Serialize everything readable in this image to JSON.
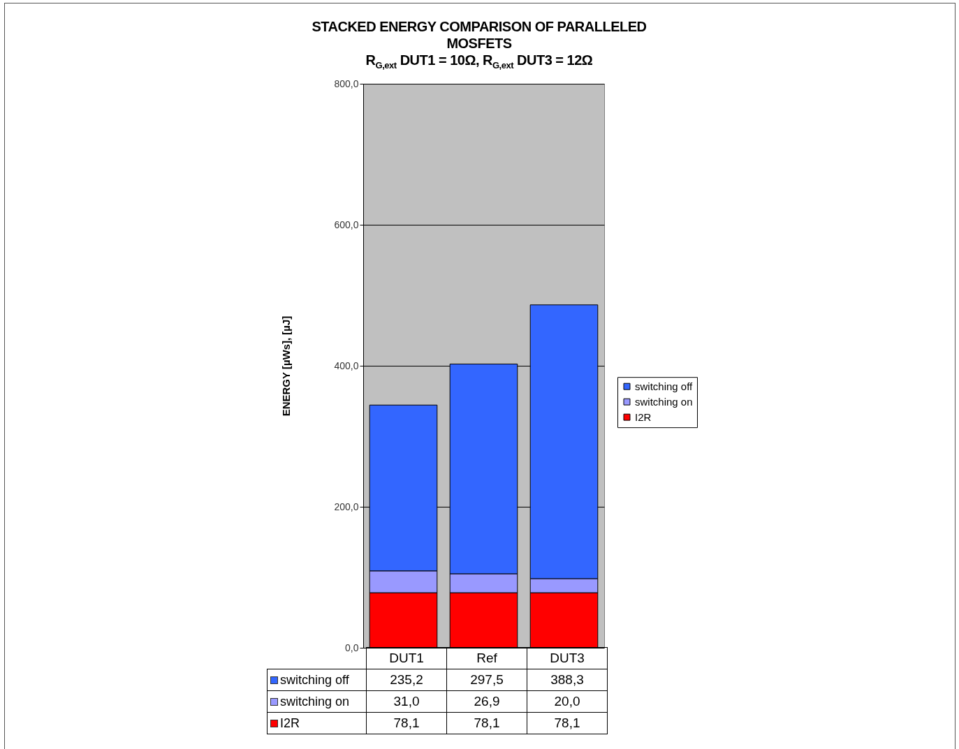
{
  "chart_data": {
    "type": "bar",
    "title": "STACKED ENERGY COMPARISON OF PARALLELED\nMOSFETS",
    "subtitle": "R$_{G,ext}$ DUT1 = 10Ω,  R$_{G,ext}$ DUT3 = 12Ω",
    "ylabel": "ENERGY [µWs], [µJ]",
    "categories": [
      "DUT1",
      "Ref",
      "DUT3"
    ],
    "stacked": true,
    "series": [
      {
        "name": "I2R",
        "color": "#ff0000",
        "values": [
          78.1,
          78.1,
          78.1
        ],
        "value_labels": [
          "78,1",
          "78,1",
          "78,1"
        ]
      },
      {
        "name": "switching on",
        "color": "#9999ff",
        "values": [
          31.0,
          26.9,
          20.0
        ],
        "value_labels": [
          "31,0",
          "26,9",
          "20,0"
        ]
      },
      {
        "name": "switching off",
        "color": "#3366ff",
        "values": [
          235.2,
          297.5,
          388.3
        ],
        "value_labels": [
          "235,2",
          "297,5",
          "388,3"
        ]
      }
    ],
    "ylim": [
      0,
      800
    ],
    "yticks": [
      {
        "value": 0,
        "label": "0,0"
      },
      {
        "value": 200,
        "label": "200,0"
      },
      {
        "value": 400,
        "label": "400,0"
      },
      {
        "value": 600,
        "label": "600,0"
      },
      {
        "value": 800,
        "label": "800,0"
      }
    ],
    "grid": "y",
    "legend": "right"
  }
}
